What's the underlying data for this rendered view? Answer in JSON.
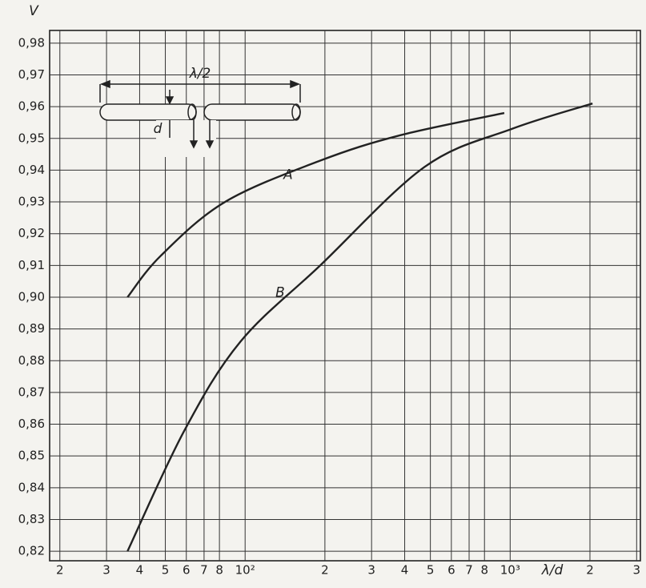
{
  "chart_data": {
    "type": "line",
    "x_label": "λ/d",
    "y_label": "V",
    "xscale": "log",
    "grid": true,
    "xlim": [
      18.3,
      3100
    ],
    "ylim": [
      0.817,
      0.984
    ],
    "xticks": [
      {
        "value": 20,
        "label": "2"
      },
      {
        "value": 30,
        "label": "3"
      },
      {
        "value": 40,
        "label": "4"
      },
      {
        "value": 50,
        "label": "5"
      },
      {
        "value": 60,
        "label": "6"
      },
      {
        "value": 70,
        "label": "7"
      },
      {
        "value": 80,
        "label": "8"
      },
      {
        "value": 100,
        "label": "10²"
      },
      {
        "value": 200,
        "label": "2"
      },
      {
        "value": 300,
        "label": "3"
      },
      {
        "value": 400,
        "label": "4"
      },
      {
        "value": 500,
        "label": "5"
      },
      {
        "value": 600,
        "label": "6"
      },
      {
        "value": 700,
        "label": "7"
      },
      {
        "value": 800,
        "label": "8"
      },
      {
        "value": 1000,
        "label": "10³"
      },
      {
        "value": 2000,
        "label": "2"
      },
      {
        "value": 3000,
        "label": "3"
      }
    ],
    "yticks": [
      {
        "value": 0.82,
        "label": "0,82"
      },
      {
        "value": 0.83,
        "label": "0,83"
      },
      {
        "value": 0.84,
        "label": "0,84"
      },
      {
        "value": 0.85,
        "label": "0,85"
      },
      {
        "value": 0.86,
        "label": "0,86"
      },
      {
        "value": 0.87,
        "label": "0,87"
      },
      {
        "value": 0.88,
        "label": "0,88"
      },
      {
        "value": 0.89,
        "label": "0,89"
      },
      {
        "value": 0.9,
        "label": "0,90"
      },
      {
        "value": 0.91,
        "label": "0,91"
      },
      {
        "value": 0.92,
        "label": "0,92"
      },
      {
        "value": 0.93,
        "label": "0,93"
      },
      {
        "value": 0.94,
        "label": "0,94"
      },
      {
        "value": 0.95,
        "label": "0,95"
      },
      {
        "value": 0.96,
        "label": "0,96"
      },
      {
        "value": 0.97,
        "label": "0,97"
      },
      {
        "value": 0.98,
        "label": "0,98"
      }
    ],
    "series": [
      {
        "name": "A",
        "color": "#222222",
        "x": [
          36,
          48,
          84,
          192,
          385,
          950
        ],
        "values": [
          0.9,
          0.913,
          0.93,
          0.943,
          0.951,
          0.958
        ]
      },
      {
        "name": "B",
        "color": "#222222",
        "x": [
          36,
          59,
          96,
          192,
          475,
          1015,
          2045
        ],
        "values": [
          0.82,
          0.858,
          0.886,
          0.91,
          0.941,
          0.953,
          0.961
        ]
      }
    ],
    "annotations": {
      "half_wave": "λ/2",
      "diameter": "d"
    }
  }
}
